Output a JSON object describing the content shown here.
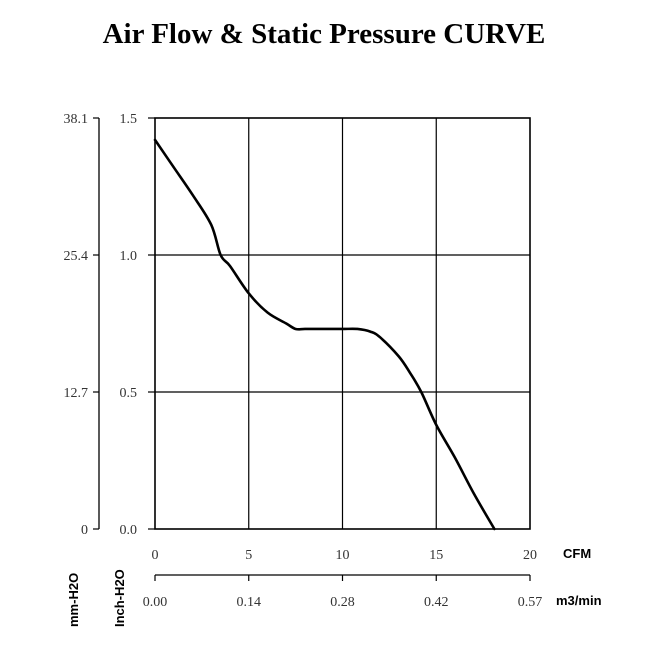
{
  "chart_data": {
    "type": "line",
    "title": "Air Flow & Static Pressure CURVE",
    "xlabel_primary": "CFM",
    "xlabel_secondary": "m3/min",
    "ylabel_primary": "Inch-H2O",
    "ylabel_secondary": "mm-H2O",
    "xlim": [
      0,
      20
    ],
    "ylim": [
      0,
      1.5
    ],
    "grid": true,
    "x_ticks": [
      "0",
      "5",
      "10",
      "15",
      "20"
    ],
    "x_tick_values": [
      0,
      5,
      10,
      15,
      20
    ],
    "x2_ticks": [
      "0.00",
      "0.14",
      "0.28",
      "0.42",
      "0.57"
    ],
    "y_ticks": [
      "0.0",
      "0.5",
      "1.0",
      "1.5"
    ],
    "y_tick_values": [
      0,
      0.5,
      1.0,
      1.5
    ],
    "y2_ticks": [
      "0",
      "12.7",
      "25.4",
      "38.1"
    ],
    "series": [
      {
        "name": "Static Pressure",
        "x": [
          0,
          1,
          2,
          3,
          3.5,
          4,
          5,
          6,
          7,
          7.5,
          8,
          9,
          10,
          10.8,
          11.5,
          12,
          13,
          13.6,
          14.2,
          15,
          16,
          17,
          18.1
        ],
        "y": [
          1.42,
          1.32,
          1.22,
          1.11,
          1.0,
          0.96,
          0.86,
          0.79,
          0.75,
          0.73,
          0.73,
          0.73,
          0.73,
          0.73,
          0.72,
          0.7,
          0.63,
          0.57,
          0.5,
          0.38,
          0.26,
          0.13,
          0.0
        ]
      }
    ]
  }
}
